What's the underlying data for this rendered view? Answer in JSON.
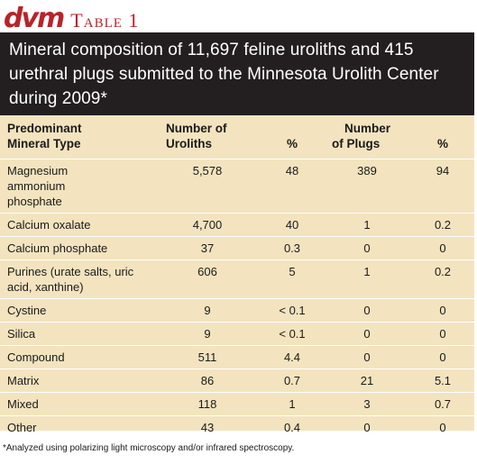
{
  "header": {
    "brand": "dvm",
    "table_label": "Table 1"
  },
  "title": "Mineral composition of 11,697 feline uroliths and 415 urethral plugs submitted to the Minnesota Urolith Center during 2009*",
  "columns": {
    "mineral": [
      "Predominant",
      "Mineral Type"
    ],
    "uroliths": [
      "Number of",
      "Uroliths"
    ],
    "uroliths_pct": "%",
    "plugs": [
      "Number",
      "of Plugs"
    ],
    "plugs_pct": "%"
  },
  "rows": [
    {
      "type": "Magnesium ammonium phosphate",
      "uroliths": "5,578",
      "uroliths_pct": "48",
      "plugs": "389",
      "plugs_pct": "94"
    },
    {
      "type": "Calcium oxalate",
      "uroliths": "4,700",
      "uroliths_pct": "40",
      "plugs": "1",
      "plugs_pct": "0.2"
    },
    {
      "type": "Calcium phosphate",
      "uroliths": "37",
      "uroliths_pct": "0.3",
      "plugs": "0",
      "plugs_pct": "0"
    },
    {
      "type": "Purines (urate salts, uric acid, xanthine)",
      "uroliths": "606",
      "uroliths_pct": "5",
      "plugs": "1",
      "plugs_pct": "0.2"
    },
    {
      "type": "Cystine",
      "uroliths": "9",
      "uroliths_pct": "< 0.1",
      "plugs": "0",
      "plugs_pct": "0"
    },
    {
      "type": "Silica",
      "uroliths": "9",
      "uroliths_pct": "< 0.1",
      "plugs": "0",
      "plugs_pct": "0"
    },
    {
      "type": "Compound",
      "uroliths": "511",
      "uroliths_pct": "4.4",
      "plugs": "0",
      "plugs_pct": "0"
    },
    {
      "type": "Matrix",
      "uroliths": "86",
      "uroliths_pct": "0.7",
      "plugs": "21",
      "plugs_pct": "5.1"
    },
    {
      "type": "Mixed",
      "uroliths": "118",
      "uroliths_pct": "1",
      "plugs": "3",
      "plugs_pct": "0.7"
    },
    {
      "type": "Other",
      "uroliths": "43",
      "uroliths_pct": "0.4",
      "plugs": "0",
      "plugs_pct": "0"
    }
  ],
  "footnote": "*Analyzed using polarizing light microscopy and/or infrared spectroscopy."
}
